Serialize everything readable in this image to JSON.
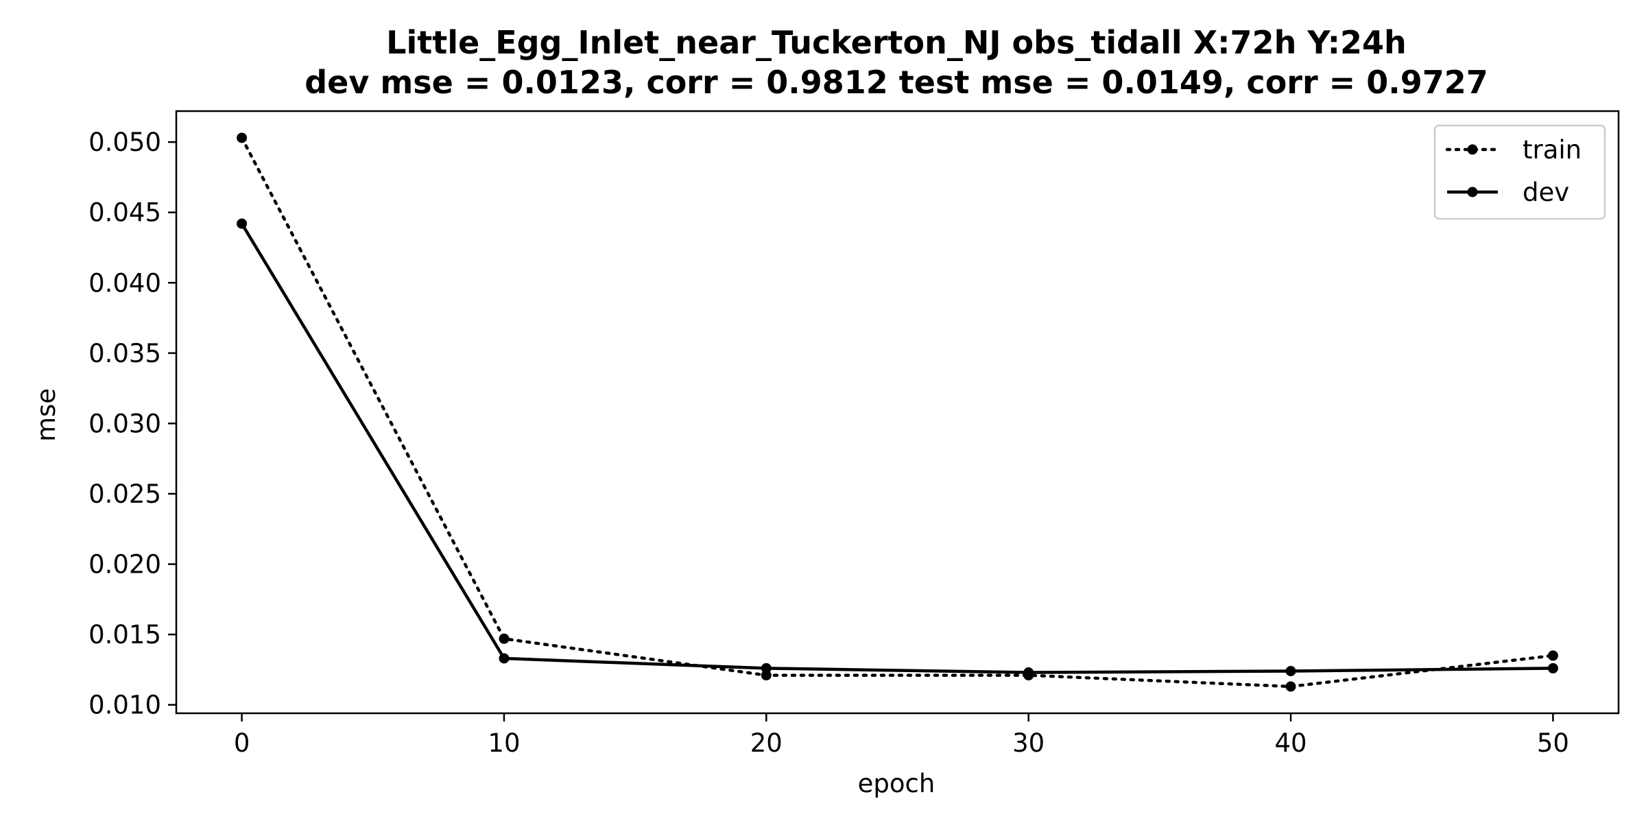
{
  "chart_data": {
    "type": "line",
    "title": "Little_Egg_Inlet_near_Tuckerton_NJ   obs_tidall   X:72h   Y:24h",
    "subtitle": "dev mse = 0.0123, corr = 0.9812   test mse = 0.0149, corr = 0.9727",
    "xlabel": "epoch",
    "ylabel": "mse",
    "x": [
      0,
      10,
      20,
      30,
      40,
      50
    ],
    "xlim": [
      -2.5,
      52.5
    ],
    "ylim": [
      0.0094,
      0.0522
    ],
    "xticks": [
      0,
      10,
      20,
      30,
      40,
      50
    ],
    "yticks": [
      0.01,
      0.015,
      0.02,
      0.025,
      0.03,
      0.035,
      0.04,
      0.045,
      0.05
    ],
    "xtick_labels": [
      "0",
      "10",
      "20",
      "30",
      "40",
      "50"
    ],
    "ytick_labels": [
      "0.010",
      "0.015",
      "0.020",
      "0.025",
      "0.030",
      "0.035",
      "0.040",
      "0.045",
      "0.050"
    ],
    "grid": false,
    "legend_position": "top-right",
    "series": [
      {
        "name": "train",
        "line_style": "dotted",
        "marker": "circle",
        "color": "#000000",
        "values": [
          0.0503,
          0.0147,
          0.0121,
          0.0121,
          0.0113,
          0.0135
        ]
      },
      {
        "name": "dev",
        "line_style": "solid",
        "marker": "circle",
        "color": "#000000",
        "values": [
          0.0442,
          0.0133,
          0.0126,
          0.0123,
          0.0124,
          0.0126
        ]
      }
    ]
  }
}
